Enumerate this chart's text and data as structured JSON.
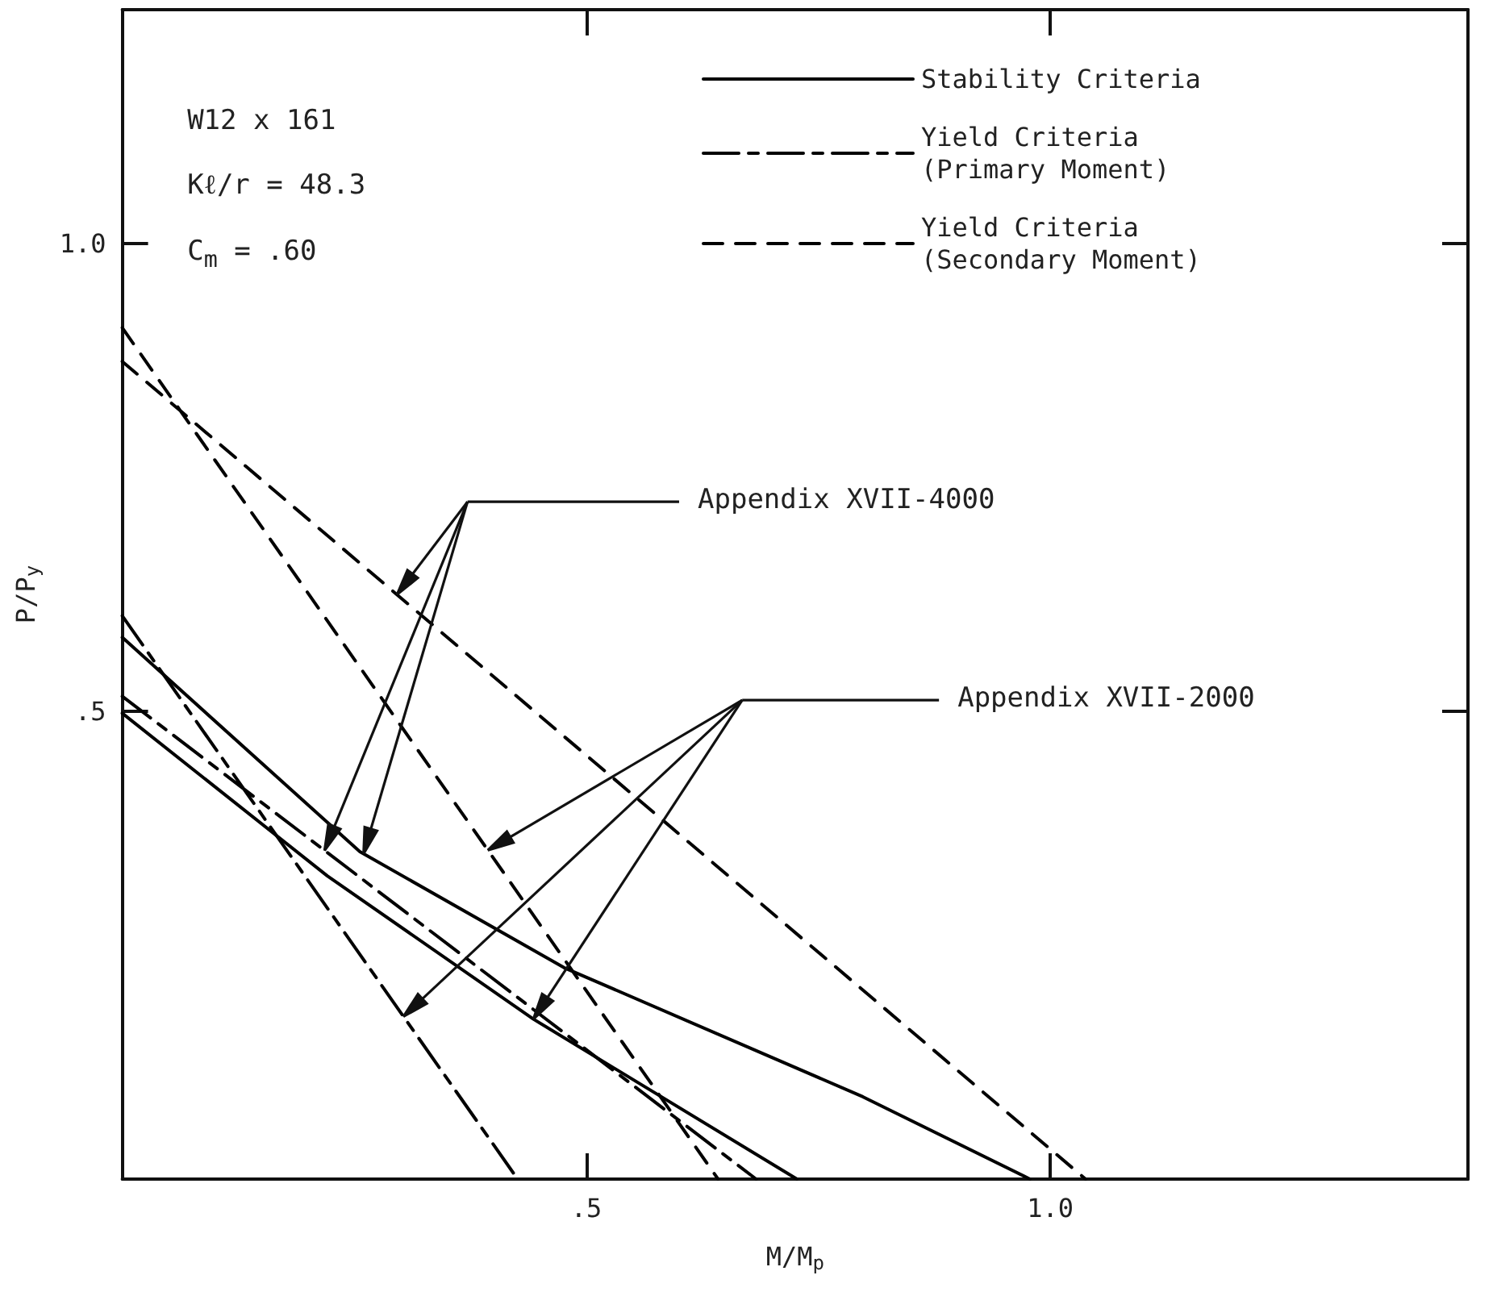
{
  "chart_data": {
    "type": "line",
    "xlabel": "M/M$_{p}$",
    "ylabel": "P/P$_{y}$",
    "xlim": [
      0,
      1.45
    ],
    "ylim": [
      0,
      1.25
    ],
    "xticks": [
      {
        "value": 0.5,
        "label": ".5"
      },
      {
        "value": 1.0,
        "label": "1.0"
      }
    ],
    "yticks": [
      {
        "value": 0.5,
        "label": ".5"
      },
      {
        "value": 1.0,
        "label": "1.0"
      }
    ],
    "grid": false,
    "legend": "top right",
    "marker": "none",
    "annotations": [
      "W12 x 161",
      "Kℓ/r = 48.3",
      "C$_{m}$ = .60",
      "Appendix XVII-4000",
      "Appendix XVII-2000"
    ],
    "series": [
      {
        "name": "Stability Criteria",
        "color": "#000000",
        "line_style": "solid",
        "x": [
          0,
          0.256,
          0.476,
          0.798,
          0.978,
          null,
          0,
          0.221,
          0.443,
          0.727
        ],
        "values": [
          0.579,
          0.35,
          0.226,
          0.088,
          0,
          null,
          0.498,
          0.324,
          0.171,
          0
        ]
      },
      {
        "name": "Yield Criteria (Primary Moment)",
        "color": "#000000",
        "line_style": "dashdot",
        "x": [
          0,
          0.426,
          null,
          0,
          0.683
        ],
        "values": [
          0.602,
          0,
          null,
          0.516,
          0
        ]
      },
      {
        "name": "Yield Criteria (Secondary Moment)",
        "color": "#000000",
        "line_style": "dashed",
        "x": [
          0,
          1.038,
          null,
          0,
          0.642
        ],
        "values": [
          0.874,
          0,
          null,
          0.91,
          0
        ]
      }
    ]
  }
}
